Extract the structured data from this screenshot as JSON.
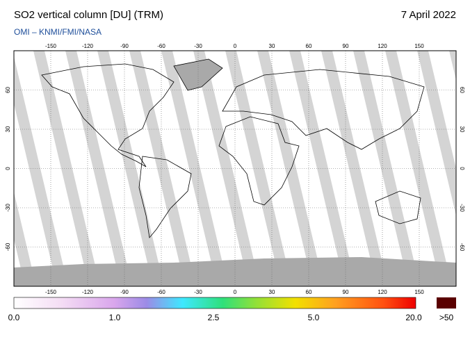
{
  "header": {
    "title": "SO2 vertical column [DU] (TRM)",
    "date": "7 April 2022",
    "source": "OMI  –  KNMI/FMI/NASA"
  },
  "map": {
    "lon_ticks": [
      "-150",
      "-120",
      "-90",
      "-60",
      "-30",
      "0",
      "30",
      "60",
      "90",
      "120",
      "150"
    ],
    "lat_ticks": [
      "60",
      "30",
      "0",
      "-30",
      "-60"
    ]
  },
  "colorbar": {
    "labels": [
      "0.0",
      "1.0",
      "2.5",
      "5.0",
      "20.0"
    ],
    "overflow_label": ">50"
  }
}
